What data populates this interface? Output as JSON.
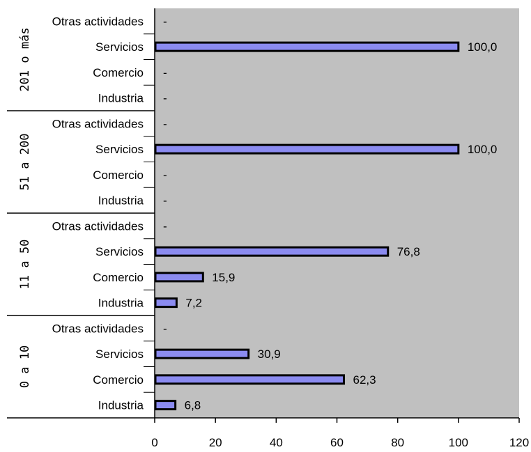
{
  "chart_data": {
    "type": "bar",
    "orientation": "horizontal",
    "groups": [
      {
        "label": "201 o más",
        "categories": [
          "Otras actividades",
          "Servicios",
          "Comercio",
          "Industria"
        ],
        "values": [
          null,
          100.0,
          null,
          null
        ],
        "value_labels": [
          "-",
          "100,0",
          "-",
          "-"
        ]
      },
      {
        "label": "51 a 200",
        "categories": [
          "Otras actividades",
          "Servicios",
          "Comercio",
          "Industria"
        ],
        "values": [
          null,
          100.0,
          null,
          null
        ],
        "value_labels": [
          "-",
          "100,0",
          "-",
          "-"
        ]
      },
      {
        "label": "11 a 50",
        "categories": [
          "Otras actividades",
          "Servicios",
          "Comercio",
          "Industria"
        ],
        "values": [
          null,
          76.8,
          15.9,
          7.2
        ],
        "value_labels": [
          "-",
          "76,8",
          "15,9",
          "7,2"
        ]
      },
      {
        "label": "0 a 10",
        "categories": [
          "Otras actividades",
          "Servicios",
          "Comercio",
          "Industria"
        ],
        "values": [
          null,
          30.9,
          62.3,
          6.8
        ],
        "value_labels": [
          "-",
          "30,9",
          "62,3",
          "6,8"
        ]
      }
    ],
    "xlim": [
      0,
      120
    ],
    "x_ticks": [
      "0",
      "20",
      "40",
      "60",
      "80",
      "100",
      "120"
    ],
    "title": "",
    "xlabel": "",
    "ylabel": "",
    "grid": false,
    "legend": "none",
    "colors": {
      "bar_fill": "#8b8bf0",
      "bar_stroke": "#000000",
      "plot_background": "#c0c0c0"
    }
  }
}
